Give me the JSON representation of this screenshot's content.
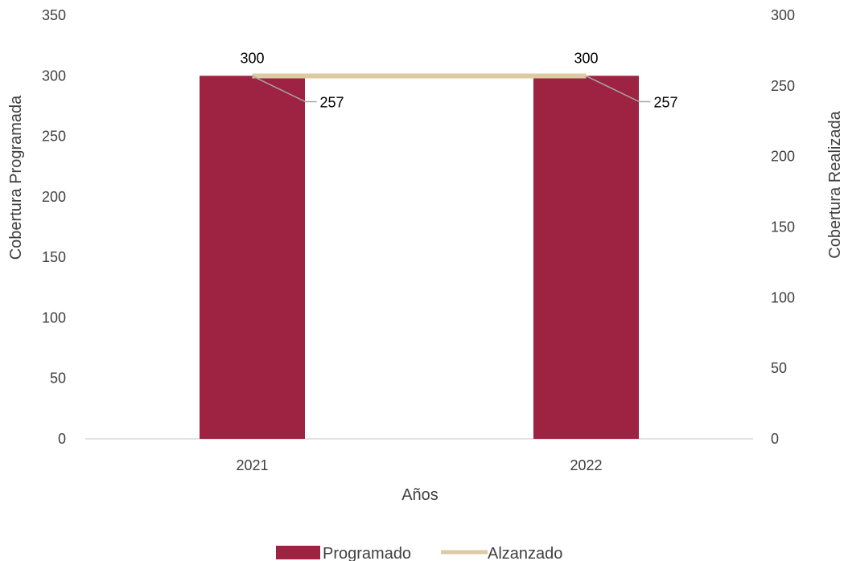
{
  "chart_data": {
    "type": "bar",
    "categories": [
      "2021",
      "2022"
    ],
    "xlabel": "Años",
    "ylabel": "Cobertura Programada",
    "y2label": "Cobertura Realizada",
    "ylim": [
      0,
      350
    ],
    "y2lim": [
      0,
      300
    ],
    "yticks": [
      0,
      50,
      100,
      150,
      200,
      250,
      300,
      350
    ],
    "y2ticks": [
      0,
      50,
      100,
      150,
      200,
      250,
      300
    ],
    "grid": false,
    "legend_position": "bottom",
    "series": [
      {
        "name": "Programado",
        "type": "bar",
        "axis": "left",
        "values": [
          300,
          300
        ],
        "color": "#9E2241"
      },
      {
        "name": "Alzanzado",
        "type": "line",
        "axis": "right",
        "values": [
          257,
          257
        ],
        "color": "#DDC9A3"
      }
    ]
  }
}
